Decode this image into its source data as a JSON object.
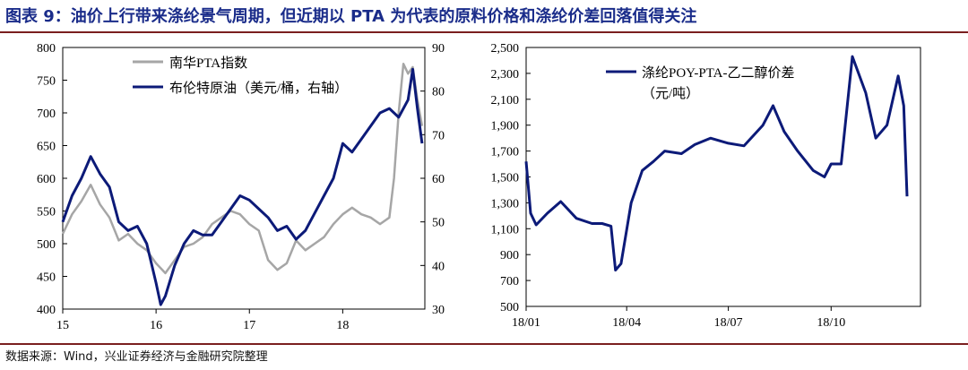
{
  "header": {
    "title": "图表 9：油价上行带来涤纶景气周期，但近期以 PTA 为代表的原料价格和涤纶价差回落值得关注"
  },
  "footer": {
    "source": "数据来源：Wind，兴业证券经济与金融研究院整理"
  },
  "colors": {
    "title": "#1a2c8a",
    "rule": "#7a1f1f",
    "navy_series": "#0c1a78",
    "gray_series": "#a6a6a6"
  },
  "chart_data": [
    {
      "type": "line",
      "x_tick_labels": [
        "15",
        "16",
        "17",
        "18"
      ],
      "y_left_ticks": [
        "400",
        "450",
        "500",
        "550",
        "600",
        "650",
        "700",
        "750",
        "800"
      ],
      "y_right_ticks": [
        "30",
        "40",
        "50",
        "60",
        "70",
        "80",
        "90"
      ],
      "ylim_left": [
        400,
        800
      ],
      "ylim_right": [
        30,
        90
      ],
      "grid": false,
      "legend_position": "top-center",
      "series": [
        {
          "name": "南华PTA指数",
          "axis": "left",
          "color": "#a6a6a6",
          "x": [
            2015.0,
            2015.1,
            2015.2,
            2015.3,
            2015.4,
            2015.5,
            2015.6,
            2015.7,
            2015.8,
            2015.9,
            2016.0,
            2016.1,
            2016.2,
            2016.3,
            2016.4,
            2016.5,
            2016.6,
            2016.7,
            2016.8,
            2016.9,
            2017.0,
            2017.1,
            2017.2,
            2017.3,
            2017.4,
            2017.5,
            2017.6,
            2017.7,
            2017.8,
            2017.9,
            2018.0,
            2018.1,
            2018.2,
            2018.3,
            2018.4,
            2018.5,
            2018.55,
            2018.6,
            2018.65,
            2018.7,
            2018.75,
            2018.8,
            2018.85
          ],
          "values": [
            515,
            545,
            565,
            590,
            560,
            540,
            505,
            515,
            500,
            490,
            470,
            455,
            475,
            495,
            500,
            510,
            530,
            540,
            550,
            545,
            530,
            520,
            475,
            460,
            470,
            505,
            490,
            500,
            510,
            530,
            545,
            555,
            545,
            540,
            530,
            540,
            600,
            700,
            775,
            760,
            770,
            720,
            680
          ]
        },
        {
          "name": "布伦特原油（美元/桶，右轴）",
          "axis": "right",
          "color": "#0c1a78",
          "x": [
            2015.0,
            2015.1,
            2015.2,
            2015.3,
            2015.4,
            2015.5,
            2015.6,
            2015.7,
            2015.8,
            2015.9,
            2016.0,
            2016.05,
            2016.1,
            2016.2,
            2016.3,
            2016.4,
            2016.5,
            2016.6,
            2016.7,
            2016.8,
            2016.9,
            2017.0,
            2017.1,
            2017.2,
            2017.3,
            2017.4,
            2017.5,
            2017.6,
            2017.7,
            2017.8,
            2017.9,
            2018.0,
            2018.1,
            2018.2,
            2018.3,
            2018.4,
            2018.5,
            2018.6,
            2018.7,
            2018.75,
            2018.8,
            2018.85
          ],
          "values": [
            50,
            56,
            60,
            65,
            61,
            58,
            50,
            48,
            49,
            45,
            36,
            31,
            33,
            40,
            45,
            48,
            47,
            47,
            50,
            53,
            56,
            55,
            53,
            51,
            48,
            49,
            46,
            48,
            52,
            56,
            60,
            68,
            66,
            69,
            72,
            75,
            76,
            74,
            78,
            85,
            76,
            68
          ]
        }
      ]
    },
    {
      "type": "line",
      "x_tick_labels": [
        "18/01",
        "18/04",
        "18/07",
        "18/10"
      ],
      "y_ticks": [
        "500",
        "700",
        "900",
        "1,100",
        "1,300",
        "1,500",
        "1,700",
        "1,900",
        "2,100",
        "2,300",
        "2,500"
      ],
      "ylim": [
        500,
        2500
      ],
      "grid": false,
      "legend_position": "top-center",
      "series": [
        {
          "name": "涤纶POY-PTA-乙二醇价差",
          "unit_label": "（元/吨）",
          "color": "#0c1a78",
          "x": [
            "2018-01-01",
            "2018-01-05",
            "2018-01-10",
            "2018-01-20",
            "2018-02-01",
            "2018-02-15",
            "2018-03-01",
            "2018-03-10",
            "2018-03-18",
            "2018-03-22",
            "2018-03-27",
            "2018-04-05",
            "2018-04-15",
            "2018-04-25",
            "2018-05-05",
            "2018-05-20",
            "2018-06-01",
            "2018-06-15",
            "2018-07-01",
            "2018-07-15",
            "2018-08-01",
            "2018-08-10",
            "2018-08-20",
            "2018-09-01",
            "2018-09-15",
            "2018-09-25",
            "2018-10-01",
            "2018-10-10",
            "2018-10-20",
            "2018-11-01",
            "2018-11-10",
            "2018-11-20",
            "2018-11-30",
            "2018-12-05",
            "2018-12-08"
          ],
          "values": [
            1620,
            1220,
            1130,
            1220,
            1310,
            1180,
            1140,
            1140,
            1120,
            780,
            830,
            1300,
            1550,
            1620,
            1700,
            1680,
            1750,
            1800,
            1760,
            1740,
            1900,
            2050,
            1850,
            1700,
            1550,
            1500,
            1600,
            1600,
            2430,
            2150,
            1800,
            1900,
            2280,
            2050,
            1350
          ]
        }
      ]
    }
  ]
}
